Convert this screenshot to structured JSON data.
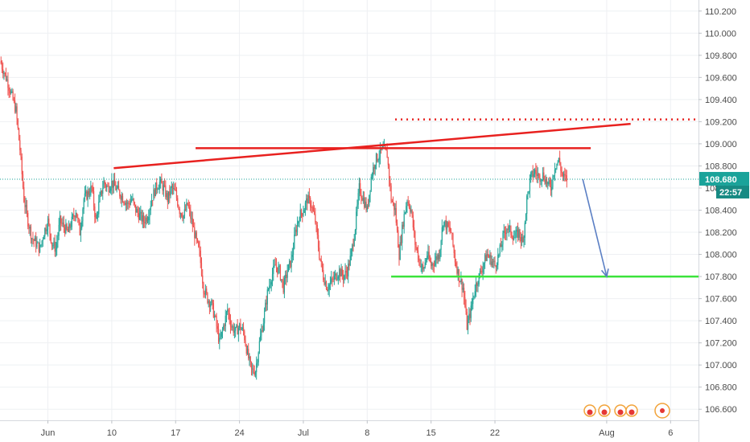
{
  "chart_data": {
    "type": "candlestick",
    "title": "",
    "xlabel": "",
    "ylabel": "",
    "ylim": [
      106.5,
      110.3
    ],
    "y_ticks": [
      "110.200",
      "110.000",
      "109.800",
      "109.600",
      "109.400",
      "109.200",
      "109.000",
      "108.800",
      "108.600",
      "108.400",
      "108.200",
      "108.000",
      "107.800",
      "107.600",
      "107.400",
      "107.200",
      "107.000",
      "106.800",
      "106.600"
    ],
    "x_ticks": [
      {
        "label": "Jun",
        "index": 7
      },
      {
        "label": "10",
        "index": 23
      },
      {
        "label": "17",
        "index": 39
      },
      {
        "label": "24",
        "index": 55
      },
      {
        "label": "Jul",
        "index": 71
      },
      {
        "label": "8",
        "index": 87
      },
      {
        "label": "15",
        "index": 103
      },
      {
        "label": "22",
        "index": 119
      },
      {
        "label": "Aug",
        "index": 147
      },
      {
        "label": "6",
        "index": 163
      }
    ],
    "x_range": [
      -5,
      170
    ],
    "current_price": {
      "label": "108.680",
      "value": 108.68,
      "color": "#1aa39a"
    },
    "countdown": {
      "label": "22:57"
    },
    "close_path": [
      [
        -5,
        109.75
      ],
      [
        -3,
        109.55
      ],
      [
        -1,
        109.3
      ],
      [
        0,
        108.95
      ],
      [
        1,
        108.5
      ],
      [
        2,
        108.3
      ],
      [
        3,
        108.15
      ],
      [
        4,
        108.1
      ],
      [
        5,
        108.05
      ],
      [
        6,
        108.2
      ],
      [
        7,
        108.3
      ],
      [
        8,
        108.1
      ],
      [
        9,
        108.05
      ],
      [
        10,
        108.3
      ],
      [
        11,
        108.25
      ],
      [
        12,
        108.2
      ],
      [
        13,
        108.3
      ],
      [
        14,
        108.4
      ],
      [
        15,
        108.2
      ],
      [
        16,
        108.5
      ],
      [
        17,
        108.55
      ],
      [
        18,
        108.6
      ],
      [
        19,
        108.3
      ],
      [
        20,
        108.5
      ],
      [
        21,
        108.65
      ],
      [
        22,
        108.6
      ],
      [
        23,
        108.65
      ],
      [
        24,
        108.6
      ],
      [
        25,
        108.55
      ],
      [
        26,
        108.5
      ],
      [
        27,
        108.45
      ],
      [
        28,
        108.5
      ],
      [
        29,
        108.4
      ],
      [
        30,
        108.35
      ],
      [
        31,
        108.3
      ],
      [
        32,
        108.35
      ],
      [
        33,
        108.5
      ],
      [
        34,
        108.6
      ],
      [
        35,
        108.65
      ],
      [
        36,
        108.6
      ],
      [
        37,
        108.5
      ],
      [
        38,
        108.6
      ],
      [
        39,
        108.55
      ],
      [
        40,
        108.4
      ],
      [
        41,
        108.35
      ],
      [
        42,
        108.45
      ],
      [
        43,
        108.3
      ],
      [
        44,
        108.15
      ],
      [
        45,
        108.0
      ],
      [
        46,
        107.7
      ],
      [
        47,
        107.6
      ],
      [
        48,
        107.55
      ],
      [
        49,
        107.4
      ],
      [
        50,
        107.2
      ],
      [
        51,
        107.35
      ],
      [
        52,
        107.5
      ],
      [
        53,
        107.35
      ],
      [
        54,
        107.3
      ],
      [
        55,
        107.35
      ],
      [
        56,
        107.3
      ],
      [
        57,
        107.1
      ],
      [
        58,
        106.95
      ],
      [
        59,
        106.95
      ],
      [
        60,
        107.2
      ],
      [
        61,
        107.4
      ],
      [
        62,
        107.65
      ],
      [
        63,
        107.8
      ],
      [
        64,
        107.9
      ],
      [
        65,
        107.85
      ],
      [
        66,
        107.7
      ],
      [
        67,
        107.85
      ],
      [
        68,
        107.95
      ],
      [
        69,
        108.2
      ],
      [
        70,
        108.35
      ],
      [
        71,
        108.4
      ],
      [
        72,
        108.5
      ],
      [
        73,
        108.45
      ],
      [
        74,
        108.3
      ],
      [
        75,
        108.0
      ],
      [
        76,
        107.8
      ],
      [
        77,
        107.7
      ],
      [
        78,
        107.75
      ],
      [
        79,
        107.8
      ],
      [
        80,
        107.85
      ],
      [
        81,
        107.8
      ],
      [
        82,
        107.85
      ],
      [
        83,
        108.0
      ],
      [
        84,
        108.25
      ],
      [
        85,
        108.6
      ],
      [
        86,
        108.5
      ],
      [
        87,
        108.4
      ],
      [
        88,
        108.7
      ],
      [
        89,
        108.85
      ],
      [
        90,
        108.9
      ],
      [
        91,
        108.95
      ],
      [
        92,
        108.9
      ],
      [
        93,
        108.5
      ],
      [
        94,
        108.4
      ],
      [
        95,
        108.0
      ],
      [
        96,
        108.3
      ],
      [
        97,
        108.5
      ],
      [
        98,
        108.4
      ],
      [
        99,
        108.1
      ],
      [
        100,
        107.95
      ],
      [
        101,
        107.85
      ],
      [
        102,
        108.0
      ],
      [
        103,
        107.9
      ],
      [
        104,
        107.95
      ],
      [
        105,
        108.0
      ],
      [
        106,
        108.3
      ],
      [
        107,
        108.25
      ],
      [
        108,
        108.2
      ],
      [
        109,
        107.95
      ],
      [
        110,
        107.8
      ],
      [
        111,
        107.7
      ],
      [
        112,
        107.35
      ],
      [
        113,
        107.5
      ],
      [
        114,
        107.7
      ],
      [
        115,
        107.8
      ],
      [
        116,
        107.9
      ],
      [
        117,
        108.0
      ],
      [
        118,
        107.95
      ],
      [
        119,
        107.9
      ],
      [
        120,
        108.0
      ],
      [
        121,
        108.15
      ],
      [
        122,
        108.25
      ],
      [
        123,
        108.2
      ],
      [
        124,
        108.15
      ],
      [
        125,
        108.2
      ],
      [
        126,
        108.1
      ],
      [
        127,
        108.5
      ],
      [
        128,
        108.7
      ],
      [
        129,
        108.75
      ],
      [
        130,
        108.7
      ],
      [
        131,
        108.72
      ],
      [
        132,
        108.65
      ],
      [
        133,
        108.6
      ],
      [
        134,
        108.8
      ],
      [
        135,
        108.85
      ],
      [
        136,
        108.7
      ],
      [
        137,
        108.68
      ]
    ],
    "annotations": [
      {
        "kind": "trendline",
        "x1": 23.5,
        "y1": 108.78,
        "x2": 153,
        "y2": 109.18,
        "color": "#e8211f"
      },
      {
        "kind": "hline",
        "x1": 44,
        "x2": 143,
        "y": 108.96,
        "color": "#e8211f"
      },
      {
        "kind": "dotted_hline",
        "x1": 94,
        "x2": 170,
        "y": 109.22,
        "color": "#e8211f"
      },
      {
        "kind": "hline",
        "x1": 93,
        "x2": 170,
        "y": 107.8,
        "color": "#3be33b"
      },
      {
        "kind": "arrow",
        "x1": 141,
        "y1": 108.68,
        "x2": 147,
        "y2": 107.8,
        "color": "#5b7fc4"
      }
    ]
  }
}
